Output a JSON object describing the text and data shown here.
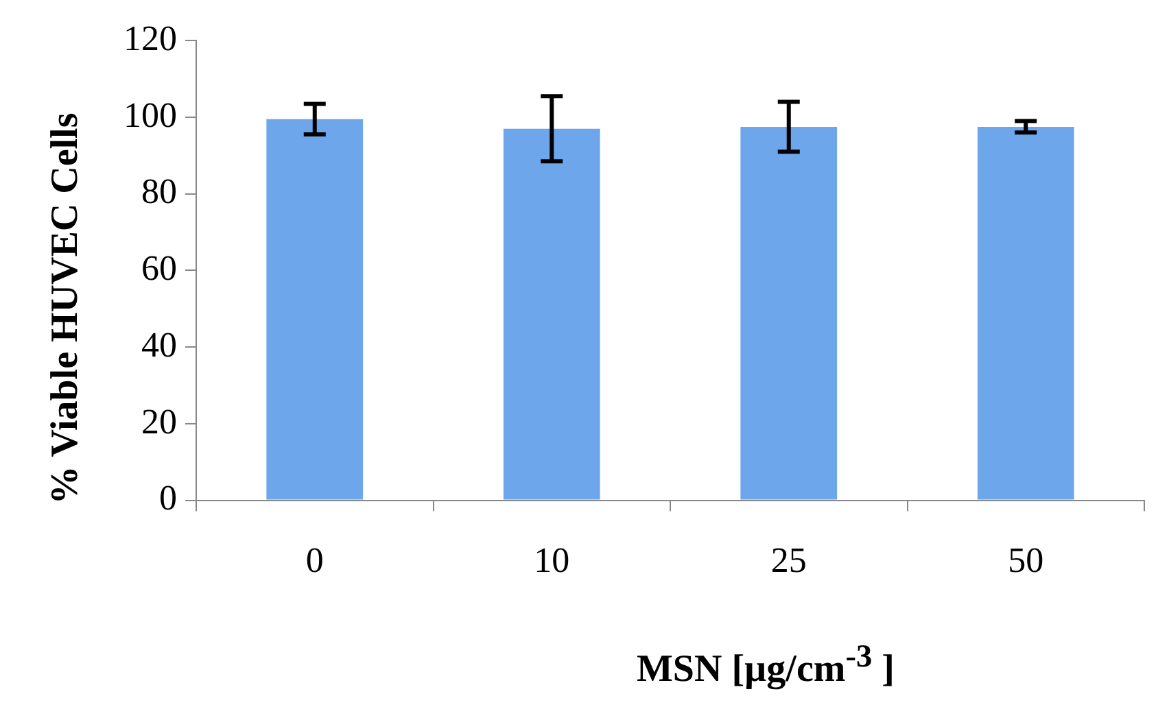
{
  "chart_data": {
    "type": "bar",
    "xlabel": "MSN [µg/cm$^{-3}$ ]",
    "ylabel": "% Viable HUVEC Cells",
    "categories": [
      "0",
      "10",
      "25",
      "50"
    ],
    "values": [
      99.5,
      97,
      97.5,
      97.5
    ],
    "errors": [
      4,
      8.5,
      6.5,
      1.5
    ],
    "color": "#6ea6ec",
    "ylim": [
      0,
      120
    ],
    "yticks": [
      0,
      20,
      40,
      60,
      80,
      100,
      120
    ],
    "grid": false,
    "legend": false
  }
}
